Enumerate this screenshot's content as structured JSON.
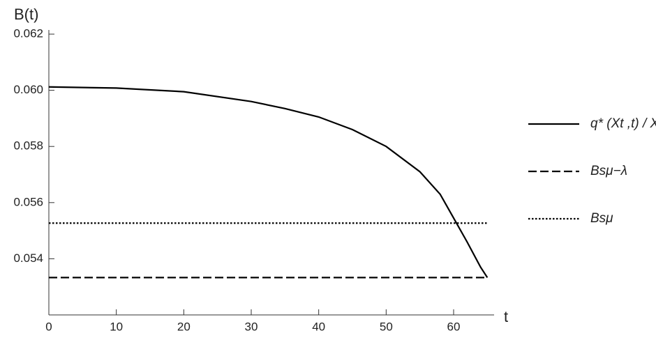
{
  "chart_data": {
    "type": "line",
    "y_label": "B(t)",
    "x_label": "t",
    "x": [
      0,
      10,
      20,
      30,
      35,
      40,
      45,
      50,
      55,
      58,
      60,
      62,
      64,
      65
    ],
    "series": [
      {
        "name": "q* (Xt ,t) / Xt",
        "color": "#000000",
        "dash": "solid",
        "values": [
          0.06012,
          0.06008,
          0.05995,
          0.0596,
          0.05935,
          0.05905,
          0.0586,
          0.058,
          0.0571,
          0.0563,
          0.05545,
          0.0546,
          0.0537,
          0.05333
        ]
      },
      {
        "name": "Bsμ−λ",
        "color": "#000000",
        "dash": "dashed",
        "values": [
          0.05333,
          0.05333,
          0.05333,
          0.05333,
          0.05333,
          0.05333,
          0.05333,
          0.05333,
          0.05333,
          0.05333,
          0.05333,
          0.05333,
          0.05333,
          0.05333
        ]
      },
      {
        "name": "Bsμ",
        "color": "#000000",
        "dash": "dotted",
        "values": [
          0.05527,
          0.05527,
          0.05527,
          0.05527,
          0.05527,
          0.05527,
          0.05527,
          0.05527,
          0.05527,
          0.05527,
          0.05527,
          0.05527,
          0.05527,
          0.05527
        ]
      }
    ],
    "xlim": [
      0,
      66
    ],
    "xticks": [
      0,
      10,
      20,
      30,
      40,
      50,
      60
    ],
    "ylim": [
      0.052,
      0.062
    ],
    "yticks": [
      0.054,
      0.056,
      0.058,
      {
        "value": 0.06,
        "label": "0.060"
      },
      0.062
    ],
    "grid": false,
    "legend": "right"
  }
}
